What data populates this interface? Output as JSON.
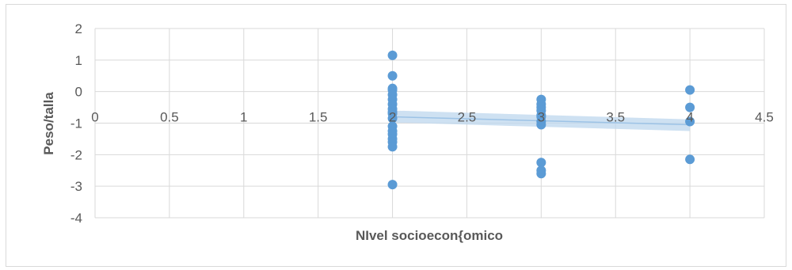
{
  "chart_data": {
    "type": "scatter",
    "title": "",
    "xlabel": "NIvel socioecon{omico",
    "ylabel": "Peso/talla",
    "xlim": [
      0,
      4.5
    ],
    "ylim": [
      -4,
      2
    ],
    "x_ticks": [
      "0",
      "0.5",
      "1",
      "1.5",
      "2",
      "2.5",
      "3",
      "3.5",
      "4",
      "4.5"
    ],
    "y_ticks": [
      "2",
      "1",
      "0",
      "-1",
      "-2",
      "-3",
      "-4"
    ],
    "grid": true,
    "legend": "none",
    "colors": {
      "points": "#5b9bd5",
      "trend_band": "#bdd7ee",
      "grid": "#d9d9d9",
      "text": "#595959"
    },
    "series": [
      {
        "x": [
          2,
          2,
          2,
          2,
          2,
          2,
          2,
          2,
          2,
          2,
          2,
          2,
          2,
          2,
          2,
          2,
          2,
          2,
          3,
          3,
          3,
          3,
          3,
          3,
          3,
          3,
          3,
          3,
          3,
          4,
          4,
          4,
          4
        ],
        "y": [
          1.15,
          0.5,
          0.1,
          0.05,
          -0.1,
          -0.25,
          -0.4,
          -0.55,
          -0.65,
          -0.7,
          -1.1,
          -1.25,
          -1.35,
          -1.5,
          -1.6,
          -1.75,
          -2.95,
          -0.85,
          -0.25,
          -0.4,
          -0.5,
          -0.6,
          -0.8,
          -0.95,
          -1.05,
          -2.25,
          -2.5,
          -2.6,
          -0.75,
          0.05,
          -0.5,
          -0.95,
          -2.15
        ]
      }
    ],
    "trend": {
      "x": [
        2,
        4
      ],
      "y": [
        -0.8,
        -1.05
      ],
      "band_upper": [
        -0.6,
        -0.88
      ],
      "band_lower": [
        -0.98,
        -1.25
      ]
    }
  }
}
